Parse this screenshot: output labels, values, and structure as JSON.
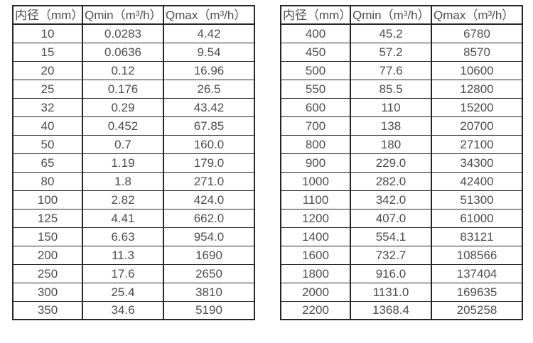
{
  "colors": {
    "border": "#262626",
    "text": "#4d4d4d",
    "background": "#ffffff"
  },
  "chart_data": [
    {
      "type": "table",
      "title": "",
      "columns": [
        "内径（mm）",
        "Qmin（m³/h）",
        "Qmax（m³/h）"
      ],
      "rows": [
        [
          "10",
          "0.0283",
          "4.42"
        ],
        [
          "15",
          "0.0636",
          "9.54"
        ],
        [
          "20",
          "0.12",
          "16.96"
        ],
        [
          "25",
          "0.176",
          "26.5"
        ],
        [
          "32",
          "0.29",
          "43.42"
        ],
        [
          "40",
          "0.452",
          "67.85"
        ],
        [
          "50",
          "0.7",
          "160.0"
        ],
        [
          "65",
          "1.19",
          "179.0"
        ],
        [
          "80",
          "1.8",
          "271.0"
        ],
        [
          "100",
          "2.82",
          "424.0"
        ],
        [
          "125",
          "4.41",
          "662.0"
        ],
        [
          "150",
          "6.63",
          "954.0"
        ],
        [
          "200",
          "11.3",
          "1690"
        ],
        [
          "250",
          "17.6",
          "2650"
        ],
        [
          "300",
          "25.4",
          "3810"
        ],
        [
          "350",
          "34.6",
          "5190"
        ]
      ]
    },
    {
      "type": "table",
      "title": "",
      "columns": [
        "内径（mm）",
        "Qmin（m³/h）",
        "Qmax（m³/h）"
      ],
      "rows": [
        [
          "400",
          "45.2",
          "6780"
        ],
        [
          "450",
          "57.2",
          "8570"
        ],
        [
          "500",
          "77.6",
          "10600"
        ],
        [
          "550",
          "85.5",
          "12800"
        ],
        [
          "600",
          "110",
          "15200"
        ],
        [
          "700",
          "138",
          "20700"
        ],
        [
          "800",
          "180",
          "27100"
        ],
        [
          "900",
          "229.0",
          "34300"
        ],
        [
          "1000",
          "282.0",
          "42400"
        ],
        [
          "1100",
          "342.0",
          "51300"
        ],
        [
          "1200",
          "407.0",
          "61000"
        ],
        [
          "1400",
          "554.1",
          "83121"
        ],
        [
          "1600",
          "732.7",
          "108566"
        ],
        [
          "1800",
          "916.0",
          "137404"
        ],
        [
          "2000",
          "1131.0",
          "169635"
        ],
        [
          "2200",
          "1368.4",
          "205258"
        ]
      ]
    }
  ]
}
